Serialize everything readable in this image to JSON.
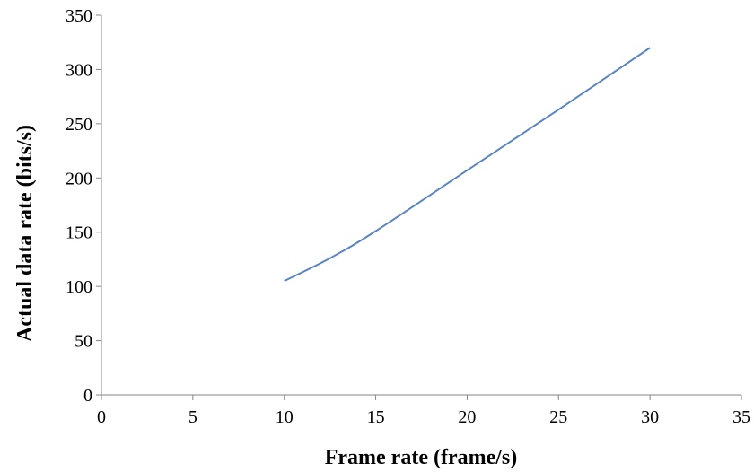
{
  "chart_data": {
    "type": "line",
    "title": "",
    "xlabel": "Frame rate (frame/s)",
    "ylabel": "Actual data rate (bits/s)",
    "xlim": [
      0,
      35
    ],
    "ylim": [
      0,
      350
    ],
    "xticks": [
      0,
      5,
      10,
      15,
      20,
      25,
      30,
      35
    ],
    "yticks": [
      0,
      50,
      100,
      150,
      200,
      250,
      300,
      350
    ],
    "grid": false,
    "legend": "none",
    "series": [
      {
        "color": "#5b84c4",
        "x": [
          10,
          12.5,
          15,
          20,
          25,
          30
        ],
        "y": [
          105,
          126,
          151,
          207,
          263,
          320
        ]
      }
    ]
  }
}
